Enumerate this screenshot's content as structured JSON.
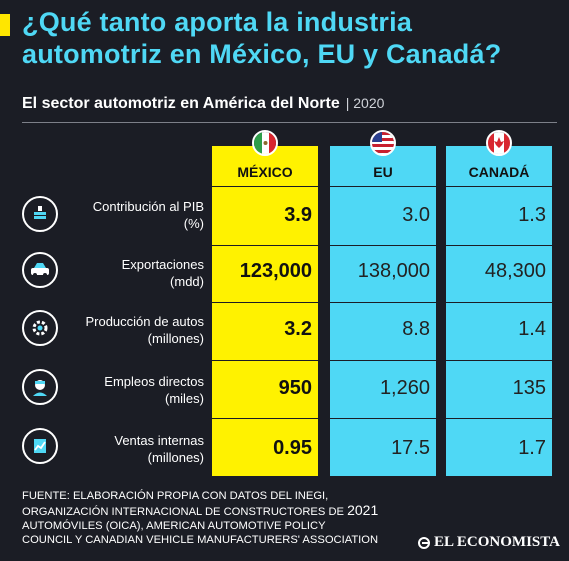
{
  "title_lines": [
    "¿Qué tanto aporta la industria",
    "automotriz en México, EU y Canadá?"
  ],
  "subtitle": "El sector automotriz en América del Norte",
  "year": "| 2020",
  "columns": [
    {
      "name": "MÉXICO",
      "flag": "mexico-flag"
    },
    {
      "name": "EU",
      "flag": "usa-flag"
    },
    {
      "name": "CANADÁ",
      "flag": "canada-flag"
    }
  ],
  "rows": [
    {
      "label": "Contribución al PIB",
      "unit": "(%)",
      "icon": "money-stack-icon",
      "mx": "3.9",
      "eu": "3.0",
      "ca": "1.3"
    },
    {
      "label": "Exportaciones",
      "unit": "(mdd)",
      "icon": "car-icon",
      "mx": "123,000",
      "eu": "138,000",
      "ca": "48,300"
    },
    {
      "label": "Producción de autos",
      "unit": "(millones)",
      "icon": "gear-icon",
      "mx": "3.2",
      "eu": "8.8",
      "ca": "1.4"
    },
    {
      "label": "Empleos directos",
      "unit": "(miles)",
      "icon": "worker-icon",
      "mx": "950",
      "eu": "1,260",
      "ca": "135"
    },
    {
      "label": "Ventas internas",
      "unit": "(millones)",
      "icon": "chart-up-icon",
      "mx": "0.95",
      "eu": "17.5",
      "ca": "1.7"
    }
  ],
  "source_lines": [
    "FUENTE: ELABORACIÓN PROPIA CON DATOS DEL INEGI,",
    "ORGANIZACIÓN INTERNACIONAL DE CONSTRUCTORES DE",
    "2021",
    "AUTOMÓVILES (OICA), AMERICAN AUTOMOTIVE POLICY",
    "COUNCIL Y CANADIAN VEHICLE MANUFACTURERS' ASSOCIATION"
  ],
  "brand": "EL ECONOMISTA",
  "colors": {
    "title": "#4fd8f5",
    "accent_yellow": "#fff200",
    "accent_cyan": "#4fd8f5",
    "background": "#1b1d25"
  }
}
